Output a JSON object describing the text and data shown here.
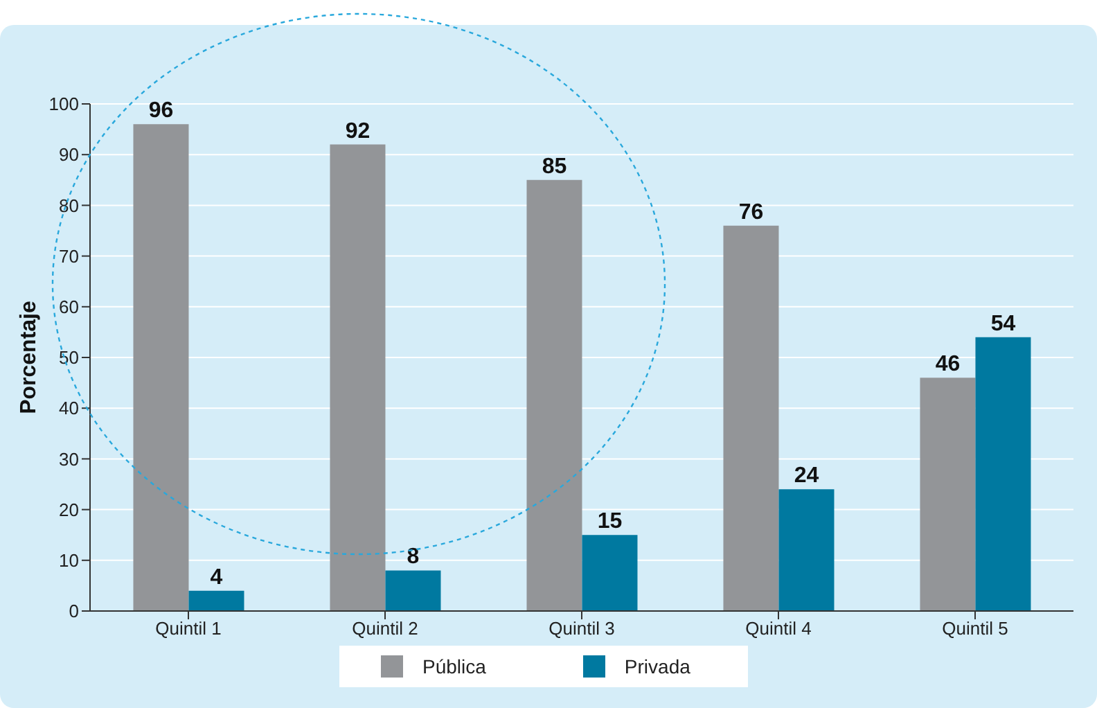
{
  "chart_data": {
    "type": "bar",
    "ylabel": "Porcentaje",
    "categories": [
      "Quintil 1",
      "Quintil 2",
      "Quintil 3",
      "Quintil 4",
      "Quintil 5"
    ],
    "series": [
      {
        "name": "Pública",
        "color": "#939598",
        "values": [
          96,
          92,
          85,
          76,
          46
        ]
      },
      {
        "name": "Privada",
        "color": "#0079a0",
        "values": [
          4,
          8,
          15,
          24,
          54
        ]
      }
    ],
    "ylim": [
      0,
      100
    ],
    "yticks": [
      0,
      10,
      20,
      30,
      40,
      50,
      60,
      70,
      80,
      90,
      100
    ],
    "grid": "y",
    "legend": "bottom",
    "data_labels": true
  }
}
